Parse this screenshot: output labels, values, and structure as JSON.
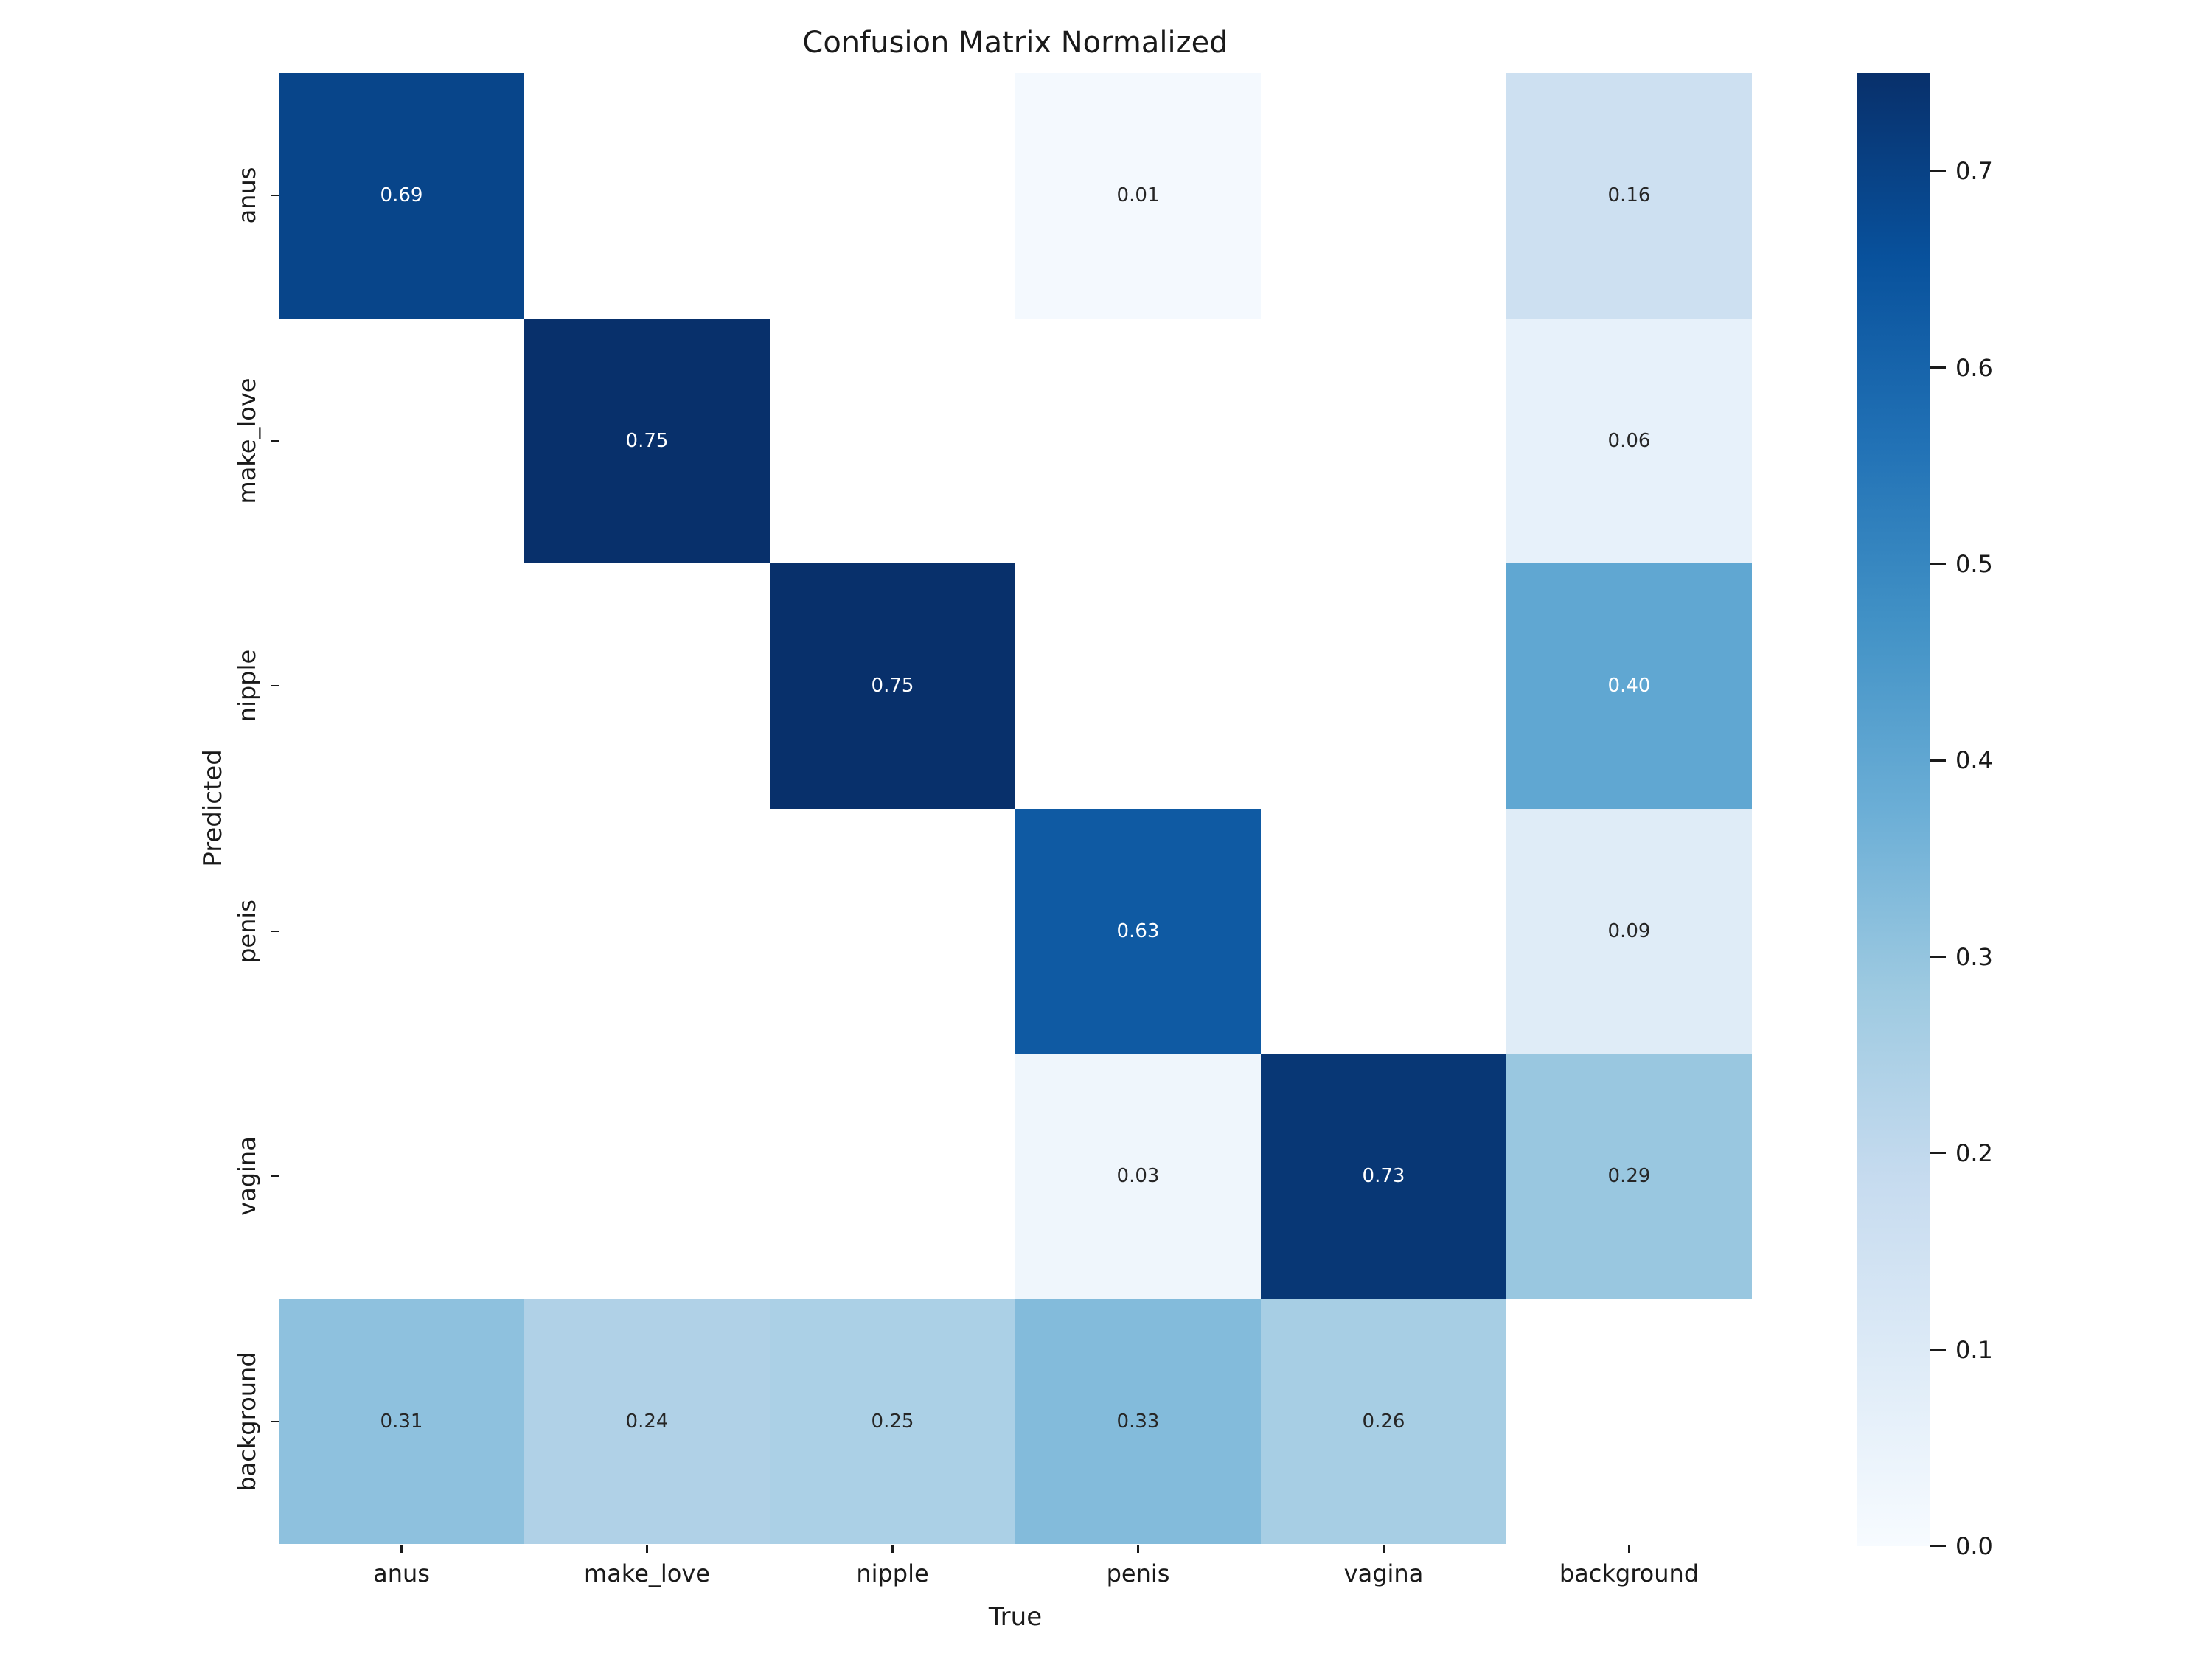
{
  "figure": {
    "background": "#ffffff"
  },
  "colors": {
    "text": "#1a1a1a",
    "cell_text_dark": "#262626",
    "cell_text_light": "#ffffff",
    "masked_cell": "#ffffff"
  },
  "chart_data": {
    "type": "heatmap",
    "title": "Confusion Matrix Normalized",
    "xlabel": "True",
    "ylabel": "Predicted",
    "x_categories": [
      "anus",
      "make_love",
      "nipple",
      "penis",
      "vagina",
      "background"
    ],
    "y_categories": [
      "anus",
      "make_love",
      "nipple",
      "penis",
      "vagina",
      "background"
    ],
    "matrix": [
      [
        0.69,
        null,
        null,
        0.01,
        null,
        0.16
      ],
      [
        null,
        0.75,
        null,
        null,
        null,
        0.06
      ],
      [
        null,
        null,
        0.75,
        null,
        null,
        0.4
      ],
      [
        null,
        null,
        null,
        0.63,
        null,
        0.09
      ],
      [
        null,
        null,
        null,
        0.03,
        0.73,
        0.29
      ],
      [
        0.31,
        0.24,
        0.25,
        0.33,
        0.26,
        null
      ]
    ],
    "annotation_format": "0.00",
    "colormap": "Blues",
    "vmin": 0.0,
    "vmax": 0.75,
    "colorbar_ticks": [
      0.0,
      0.1,
      0.2,
      0.3,
      0.4,
      0.5,
      0.6,
      0.7
    ],
    "legend_position": "right-colorbar",
    "grid": false,
    "masked_cells_rendered_white": true
  }
}
